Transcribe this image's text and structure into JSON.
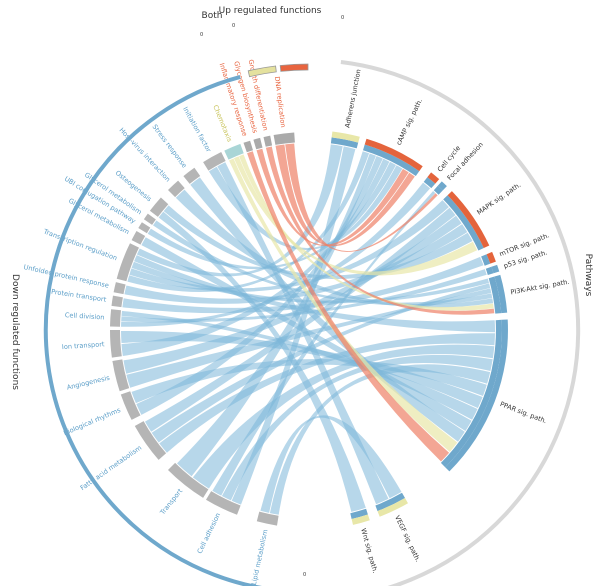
{
  "groups": {
    "down": {
      "label": "Down regulated functions",
      "color": "#6fa8cc"
    },
    "both": {
      "label": "Both",
      "color": "#e4e19e"
    },
    "up": {
      "label": "Up regulated functions",
      "color": "#e8643f"
    },
    "pathways": {
      "label": "Pathways",
      "color": "#dcdcdc"
    }
  },
  "zero_tick": "0",
  "colors": {
    "down": "#7cb6d8",
    "down_text": "#5b9ec8",
    "both": "#e8e7a8",
    "both_text": "#c8c35a",
    "up": "#ee8066",
    "up_text": "#e8643f",
    "grey": "#b5b5b5",
    "pathway_text": "#333333",
    "pathway_ring": "#e4643c"
  },
  "functions": [
    {
      "name": "Lipid metabolism",
      "cat": "down"
    },
    {
      "name": "Cell adhesion",
      "cat": "down"
    },
    {
      "name": "Transport",
      "cat": "down"
    },
    {
      "name": "Fatty acid metabolism",
      "cat": "down"
    },
    {
      "name": "Biological rhythms",
      "cat": "down"
    },
    {
      "name": "Angiogenesis",
      "cat": "down"
    },
    {
      "name": "Ion transport",
      "cat": "down"
    },
    {
      "name": "Cell division",
      "cat": "down"
    },
    {
      "name": "Protein transport",
      "cat": "down"
    },
    {
      "name": "Unfolded protein response",
      "cat": "down"
    },
    {
      "name": "Transcription regulation",
      "cat": "down"
    },
    {
      "name": "Glycerol metabolism",
      "cat": "down"
    },
    {
      "name": "UBI conjugation pathway",
      "cat": "down"
    },
    {
      "name": "Glycerol metabolism",
      "cat": "down"
    },
    {
      "name": "Osteogenesis",
      "cat": "down"
    },
    {
      "name": "Host-virus interaction",
      "cat": "down"
    },
    {
      "name": "Stress response",
      "cat": "down"
    },
    {
      "name": "Initiation factor",
      "cat": "down"
    },
    {
      "name": "Chemotaxis",
      "cat": "both"
    },
    {
      "name": "Inflammatory response",
      "cat": "up"
    },
    {
      "name": "Glycogen biosynthesis",
      "cat": "up"
    },
    {
      "name": "Growth differentiation",
      "cat": "up"
    },
    {
      "name": "DNA replication",
      "cat": "up"
    }
  ],
  "pathways": [
    {
      "name": "Adherens junction"
    },
    {
      "name": "cAMP sig. path."
    },
    {
      "name": "Cell cycle"
    },
    {
      "name": "Focal adhesion"
    },
    {
      "name": "MAPK sig. path."
    },
    {
      "name": "mTOR sig. path."
    },
    {
      "name": "p53 sig. path."
    },
    {
      "name": "PI3K-Akt sig. path."
    },
    {
      "name": "PPAR sig. path."
    },
    {
      "name": "VEGF sig. path."
    },
    {
      "name": "Wnt sig. path."
    }
  ]
}
